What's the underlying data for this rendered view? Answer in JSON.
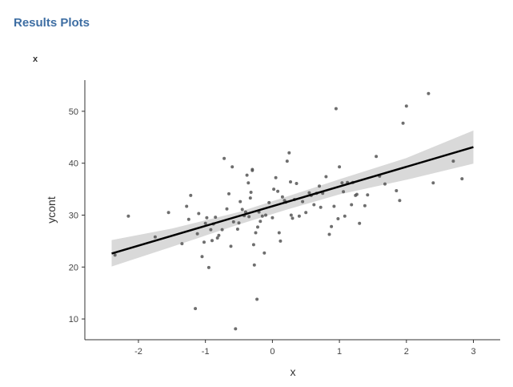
{
  "header": {
    "title": "Results Plots"
  },
  "plot": {
    "label": "x"
  },
  "chart_data": {
    "type": "scatter",
    "title": "",
    "xlabel": "x",
    "ylabel": "ycont",
    "xlim": [
      -2.8,
      3.4
    ],
    "ylim": [
      6,
      56
    ],
    "xticks": [
      -2,
      -1,
      0,
      1,
      2,
      3
    ],
    "yticks": [
      10,
      20,
      30,
      40,
      50
    ],
    "grid": false,
    "point_color": "#555555",
    "band_color": "#d9d9d9",
    "line_color": "#000000",
    "fit_line": {
      "x": [
        -2.4,
        3.0
      ],
      "y": [
        22.6,
        43.1
      ]
    },
    "confidence_band": {
      "x": [
        -2.4,
        -1.5,
        -0.5,
        0.2,
        1.0,
        2.0,
        3.0
      ],
      "lower": [
        20.1,
        23.9,
        28.2,
        31.0,
        34.0,
        36.8,
        39.9
      ],
      "upper": [
        25.2,
        27.4,
        30.6,
        33.5,
        36.9,
        41.0,
        46.3
      ]
    },
    "points": [
      {
        "x": -2.35,
        "y": 22.3
      },
      {
        "x": -2.15,
        "y": 29.8
      },
      {
        "x": -1.75,
        "y": 25.8
      },
      {
        "x": -1.55,
        "y": 30.5
      },
      {
        "x": -1.35,
        "y": 24.5
      },
      {
        "x": -1.28,
        "y": 31.7
      },
      {
        "x": -1.25,
        "y": 29.2
      },
      {
        "x": -1.22,
        "y": 33.8
      },
      {
        "x": -1.15,
        "y": 12.0
      },
      {
        "x": -1.12,
        "y": 26.4
      },
      {
        "x": -1.1,
        "y": 30.3
      },
      {
        "x": -1.05,
        "y": 22.0
      },
      {
        "x": -1.02,
        "y": 24.8
      },
      {
        "x": -1.0,
        "y": 28.4
      },
      {
        "x": -0.98,
        "y": 29.5
      },
      {
        "x": -0.95,
        "y": 19.9
      },
      {
        "x": -0.92,
        "y": 27.2
      },
      {
        "x": -0.9,
        "y": 25.1
      },
      {
        "x": -0.88,
        "y": 28.3
      },
      {
        "x": -0.85,
        "y": 29.6
      },
      {
        "x": -0.82,
        "y": 25.6
      },
      {
        "x": -0.8,
        "y": 26.1
      },
      {
        "x": -0.75,
        "y": 27.2
      },
      {
        "x": -0.72,
        "y": 40.9
      },
      {
        "x": -0.68,
        "y": 31.2
      },
      {
        "x": -0.65,
        "y": 34.1
      },
      {
        "x": -0.62,
        "y": 24.0
      },
      {
        "x": -0.6,
        "y": 39.3
      },
      {
        "x": -0.58,
        "y": 28.7
      },
      {
        "x": -0.55,
        "y": 8.1
      },
      {
        "x": -0.52,
        "y": 27.3
      },
      {
        "x": -0.5,
        "y": 28.5
      },
      {
        "x": -0.48,
        "y": 32.6
      },
      {
        "x": -0.45,
        "y": 31.1
      },
      {
        "x": -0.42,
        "y": 29.9
      },
      {
        "x": -0.4,
        "y": 30.6
      },
      {
        "x": -0.38,
        "y": 37.7
      },
      {
        "x": -0.36,
        "y": 36.2
      },
      {
        "x": -0.35,
        "y": 29.7
      },
      {
        "x": -0.33,
        "y": 33.3
      },
      {
        "x": -0.32,
        "y": 34.4
      },
      {
        "x": -0.3,
        "y": 38.8
      },
      {
        "x": -0.3,
        "y": 38.6
      },
      {
        "x": -0.28,
        "y": 24.3
      },
      {
        "x": -0.27,
        "y": 20.4
      },
      {
        "x": -0.25,
        "y": 26.6
      },
      {
        "x": -0.23,
        "y": 13.8
      },
      {
        "x": -0.22,
        "y": 27.7
      },
      {
        "x": -0.2,
        "y": 30.6
      },
      {
        "x": -0.18,
        "y": 28.8
      },
      {
        "x": -0.15,
        "y": 29.8
      },
      {
        "x": -0.12,
        "y": 22.7
      },
      {
        "x": -0.1,
        "y": 30.0
      },
      {
        "x": -0.05,
        "y": 32.4
      },
      {
        "x": 0.0,
        "y": 29.5
      },
      {
        "x": 0.02,
        "y": 35.0
      },
      {
        "x": 0.05,
        "y": 37.2
      },
      {
        "x": 0.08,
        "y": 34.6
      },
      {
        "x": 0.1,
        "y": 26.6
      },
      {
        "x": 0.12,
        "y": 25.0
      },
      {
        "x": 0.15,
        "y": 33.5
      },
      {
        "x": 0.18,
        "y": 32.8
      },
      {
        "x": 0.2,
        "y": 32.5
      },
      {
        "x": 0.22,
        "y": 40.4
      },
      {
        "x": 0.25,
        "y": 42.0
      },
      {
        "x": 0.27,
        "y": 36.4
      },
      {
        "x": 0.28,
        "y": 30.0
      },
      {
        "x": 0.3,
        "y": 29.4
      },
      {
        "x": 0.33,
        "y": 33.0
      },
      {
        "x": 0.36,
        "y": 36.1
      },
      {
        "x": 0.4,
        "y": 29.8
      },
      {
        "x": 0.45,
        "y": 32.6
      },
      {
        "x": 0.5,
        "y": 30.5
      },
      {
        "x": 0.55,
        "y": 34.3
      },
      {
        "x": 0.58,
        "y": 33.8
      },
      {
        "x": 0.62,
        "y": 32.0
      },
      {
        "x": 0.66,
        "y": 34.2
      },
      {
        "x": 0.7,
        "y": 35.6
      },
      {
        "x": 0.72,
        "y": 31.5
      },
      {
        "x": 0.75,
        "y": 34.2
      },
      {
        "x": 0.8,
        "y": 37.4
      },
      {
        "x": 0.85,
        "y": 26.3
      },
      {
        "x": 0.88,
        "y": 27.8
      },
      {
        "x": 0.92,
        "y": 31.7
      },
      {
        "x": 0.95,
        "y": 50.5
      },
      {
        "x": 0.98,
        "y": 29.3
      },
      {
        "x": 1.0,
        "y": 39.3
      },
      {
        "x": 1.04,
        "y": 36.2
      },
      {
        "x": 1.06,
        "y": 34.5
      },
      {
        "x": 1.08,
        "y": 29.8
      },
      {
        "x": 1.12,
        "y": 36.3
      },
      {
        "x": 1.18,
        "y": 32.0
      },
      {
        "x": 1.2,
        "y": 36.3
      },
      {
        "x": 1.24,
        "y": 33.8
      },
      {
        "x": 1.26,
        "y": 34.0
      },
      {
        "x": 1.3,
        "y": 28.4
      },
      {
        "x": 1.38,
        "y": 31.8
      },
      {
        "x": 1.42,
        "y": 33.9
      },
      {
        "x": 1.55,
        "y": 41.3
      },
      {
        "x": 1.6,
        "y": 37.5
      },
      {
        "x": 1.68,
        "y": 36.0
      },
      {
        "x": 1.85,
        "y": 34.7
      },
      {
        "x": 1.9,
        "y": 32.8
      },
      {
        "x": 1.95,
        "y": 47.7
      },
      {
        "x": 2.0,
        "y": 51.0
      },
      {
        "x": 2.33,
        "y": 53.4
      },
      {
        "x": 2.4,
        "y": 36.2
      },
      {
        "x": 2.7,
        "y": 40.4
      },
      {
        "x": 2.83,
        "y": 37.0
      }
    ]
  }
}
